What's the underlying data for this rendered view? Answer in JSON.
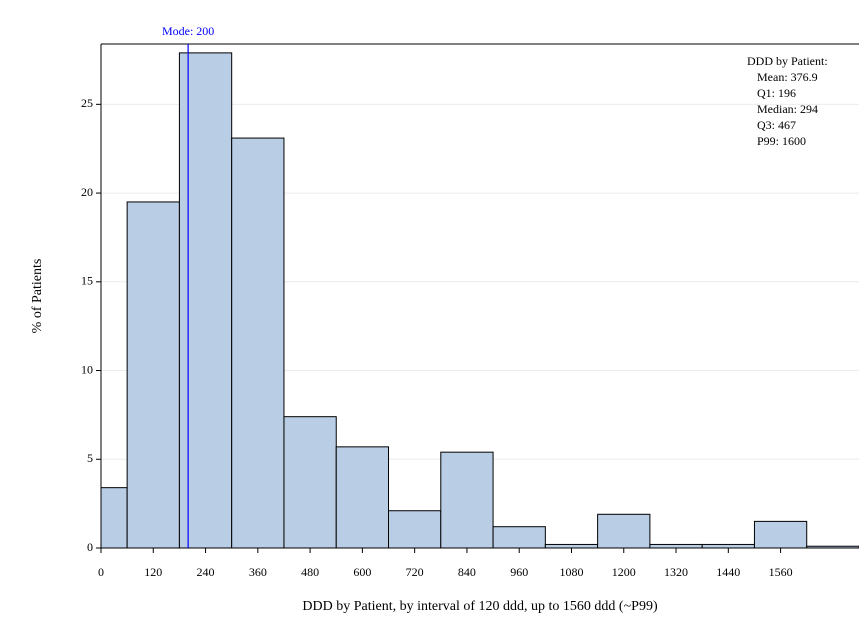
{
  "chart_data": {
    "type": "histogram",
    "xlabel": "DDD by Patient, by interval of 120 ddd, up to 1560 ddd (~P99)",
    "ylabel": "% of Patients",
    "bins": [
      0,
      60,
      180,
      300,
      420,
      540,
      660,
      780,
      900,
      1020,
      1140,
      1260,
      1380,
      1500,
      1620,
      1740
    ],
    "values": [
      3.4,
      19.5,
      27.9,
      23.1,
      7.4,
      5.7,
      2.1,
      5.4,
      1.2,
      0.2,
      1.9,
      0.2,
      0.2,
      1.5,
      0.1
    ],
    "color": "#b9cde5",
    "xlim": [
      0,
      1740
    ],
    "ylim": [
      0,
      28.4
    ],
    "xticks": [
      0,
      120,
      240,
      360,
      480,
      600,
      720,
      840,
      960,
      1080,
      1200,
      1320,
      1440,
      1560
    ],
    "yticks": [
      0,
      5,
      10,
      15,
      20,
      25
    ],
    "grid": true,
    "mode_line": {
      "value": 200,
      "label": "Mode: 200",
      "color": "#0000ff"
    },
    "stats_title": "DDD by Patient:",
    "stats": [
      "Mean: 376.9",
      "Q1: 196",
      "Median: 294",
      "Q3: 467",
      "P99: 1600"
    ]
  }
}
